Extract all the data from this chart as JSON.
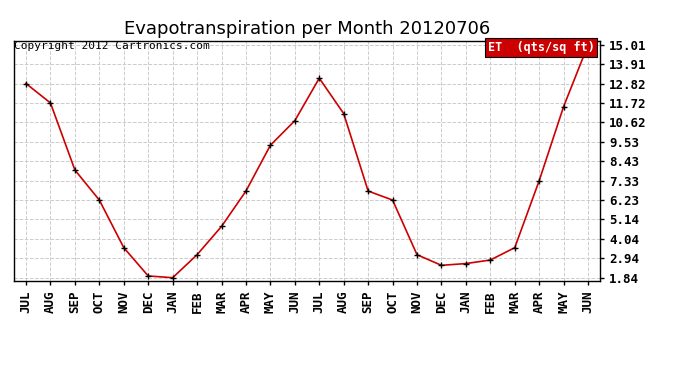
{
  "title": "Evapotranspiration per Month 20120706",
  "copyright": "Copyright 2012 Cartronics.com",
  "legend_label": "ET  (qts/sq ft)",
  "x_labels": [
    "JUL",
    "AUG",
    "SEP",
    "OCT",
    "NOV",
    "DEC",
    "JAN",
    "FEB",
    "MAR",
    "APR",
    "MAY",
    "JUN",
    "JUL",
    "AUG",
    "SEP",
    "OCT",
    "NOV",
    "DEC",
    "JAN",
    "FEB",
    "MAR",
    "APR",
    "MAY",
    "JUN"
  ],
  "y_values": [
    12.82,
    11.72,
    7.93,
    6.23,
    3.54,
    1.94,
    1.84,
    3.14,
    4.74,
    6.74,
    9.33,
    10.72,
    13.12,
    11.12,
    6.74,
    6.23,
    3.14,
    2.54,
    2.64,
    2.84,
    3.54,
    7.33,
    11.52,
    15.01
  ],
  "y_min": 1.84,
  "y_max": 15.01,
  "y_ticks": [
    1.84,
    2.94,
    4.04,
    5.14,
    6.23,
    7.33,
    8.43,
    9.53,
    10.62,
    11.72,
    12.82,
    13.91,
    15.01
  ],
  "line_color": "#cc0000",
  "marker_color": "#000000",
  "bg_color": "#ffffff",
  "grid_color": "#cccccc",
  "legend_bg": "#cc0000",
  "legend_text_color": "#ffffff",
  "title_fontsize": 13,
  "tick_fontsize": 9,
  "copyright_fontsize": 8
}
